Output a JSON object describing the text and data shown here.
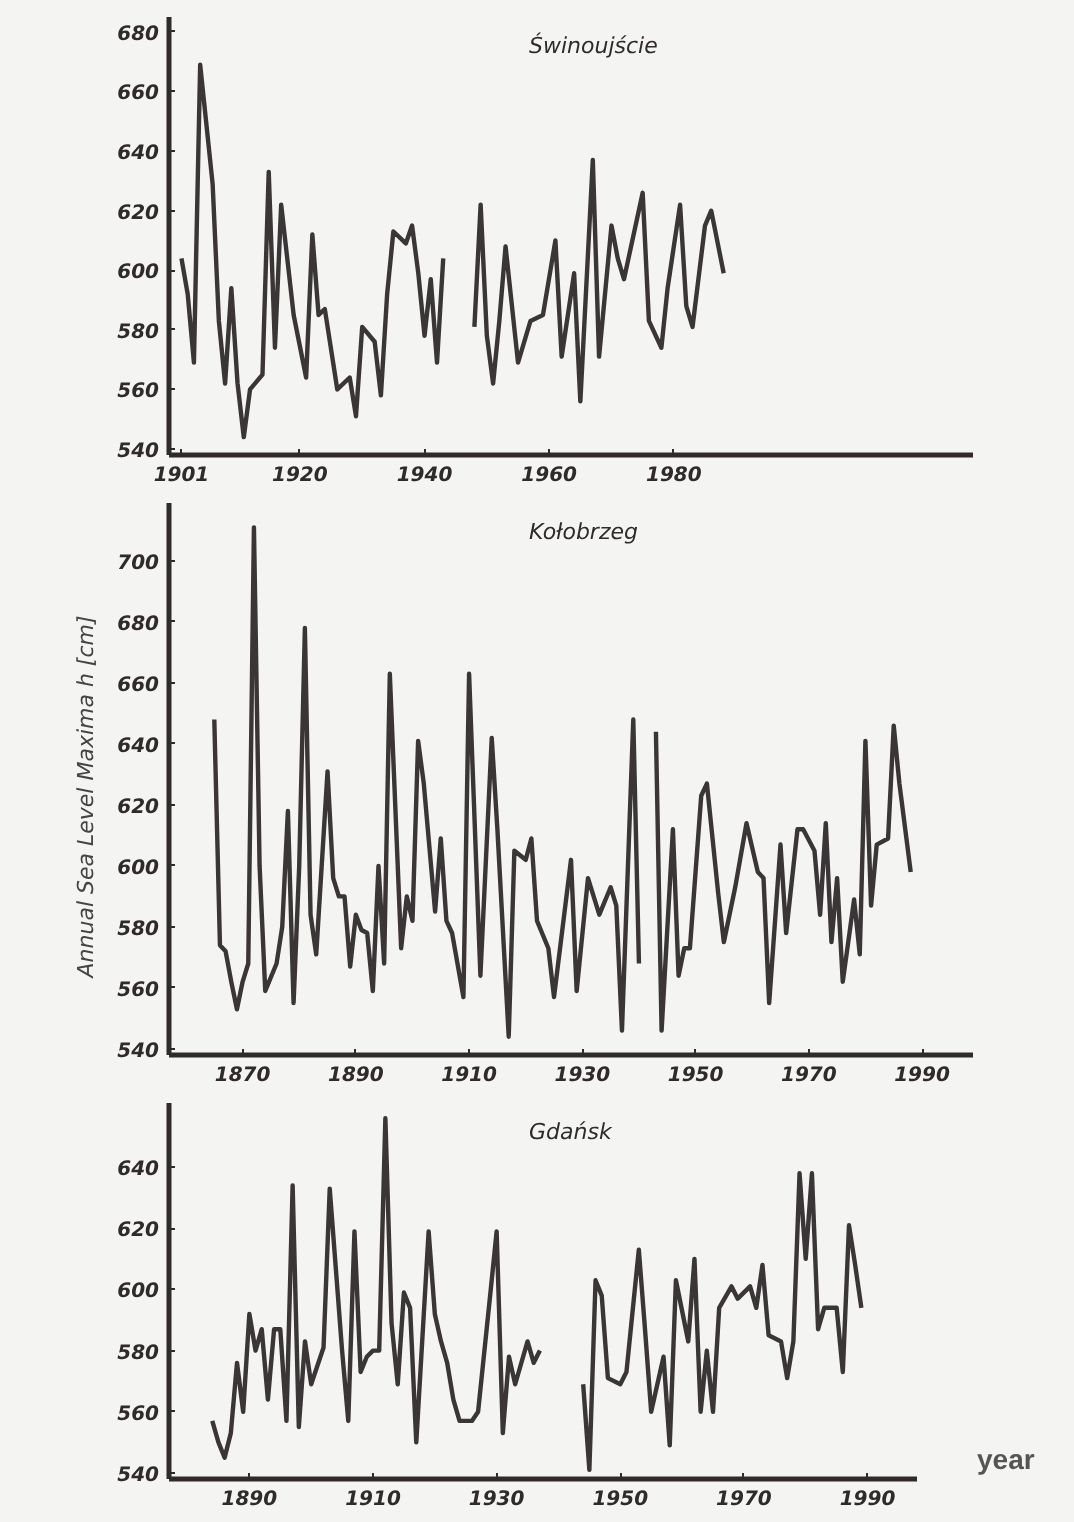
{
  "chart_data": [
    {
      "type": "line",
      "title": "Świnoujście",
      "xlim": [
        1899,
        2028
      ],
      "ylim": [
        538,
        685
      ],
      "xticks": [
        1901,
        1920,
        1940,
        1960,
        1980
      ],
      "yticks": [
        540,
        560,
        580,
        600,
        620,
        640,
        660,
        680
      ],
      "x": [
        1901,
        1902,
        1903,
        1904,
        1906,
        1907,
        1908,
        1909,
        1910,
        1911,
        1912,
        1914,
        1915,
        1916,
        1917,
        1919,
        1921,
        1922,
        1923,
        1924,
        1926,
        1928,
        1929,
        1930,
        1932,
        1933,
        1934,
        1935,
        1937,
        1938,
        1939,
        1940,
        1941,
        1942,
        1943,
        1945,
        1948,
        1949,
        1950,
        1951,
        1952,
        1953,
        1955,
        1957,
        1959,
        1961,
        1962,
        1964,
        1965,
        1967,
        1968,
        1970,
        1971,
        1972,
        1975,
        1976,
        1978,
        1979,
        1981,
        1982,
        1983,
        1985,
        1986,
        1988
      ],
      "series": [
        {
          "color": "#3a3536",
          "values": [
            604,
            592,
            569,
            669,
            629,
            583,
            562,
            594,
            562,
            544,
            560,
            565,
            633,
            574,
            622,
            585,
            564,
            612,
            585,
            587,
            560,
            564,
            551,
            581,
            576,
            558,
            592,
            613,
            609,
            615,
            599,
            578,
            597,
            569,
            604,
            null,
            581,
            622,
            578,
            562,
            583,
            608,
            569,
            583,
            585,
            610,
            571,
            599,
            556,
            637,
            571,
            615,
            604,
            597,
            626,
            583,
            574,
            594,
            622,
            588,
            581,
            615,
            620,
            599
          ]
        }
      ]
    },
    {
      "type": "line",
      "title": "Kołobrzeg",
      "ylabel": "Annual  Sea  Level  Maxima  h  [cm]",
      "xlim": [
        1857,
        1999
      ],
      "ylim": [
        538,
        719
      ],
      "xticks": [
        1870,
        1890,
        1910,
        1930,
        1950,
        1970,
        1990
      ],
      "yticks": [
        540,
        560,
        580,
        600,
        620,
        640,
        660,
        680,
        700
      ],
      "x": [
        1865,
        1866,
        1867,
        1868,
        1869,
        1870,
        1871,
        1872,
        1873,
        1874,
        1876,
        1877,
        1878,
        1879,
        1880,
        1881,
        1882,
        1883,
        1885,
        1886,
        1887,
        1888,
        1889,
        1890,
        1891,
        1892,
        1893,
        1894,
        1895,
        1896,
        1898,
        1899,
        1900,
        1901,
        1902,
        1904,
        1905,
        1906,
        1907,
        1909,
        1910,
        1912,
        1914,
        1915,
        1917,
        1918,
        1920,
        1921,
        1922,
        1924,
        1925,
        1928,
        1929,
        1931,
        1933,
        1935,
        1936,
        1937,
        1939,
        1940,
        1941,
        1943,
        1944,
        1946,
        1947,
        1948,
        1949,
        1951,
        1952,
        1954,
        1955,
        1957,
        1959,
        1961,
        1962,
        1963,
        1965,
        1966,
        1968,
        1969,
        1971,
        1972,
        1973,
        1974,
        1975,
        1976,
        1978,
        1979,
        1980,
        1981,
        1982,
        1984,
        1985,
        1986,
        1988
      ],
      "series": [
        {
          "color": "#3a3536",
          "values": [
            648,
            574,
            572,
            562,
            553,
            562,
            568,
            711,
            600,
            559,
            568,
            580,
            618,
            555,
            600,
            678,
            584,
            571,
            631,
            596,
            590,
            590,
            567,
            584,
            579,
            578,
            559,
            600,
            568,
            663,
            573,
            590,
            582,
            641,
            627,
            585,
            609,
            582,
            578,
            557,
            663,
            564,
            642,
            612,
            544,
            605,
            602,
            609,
            582,
            573,
            557,
            602,
            559,
            596,
            584,
            593,
            587,
            546,
            648,
            568,
            null,
            644,
            546,
            612,
            564,
            573,
            573,
            623,
            627,
            591,
            575,
            593,
            614,
            598,
            596,
            555,
            607,
            578,
            612,
            612,
            605,
            584,
            614,
            575,
            596,
            562,
            589,
            571,
            641,
            587,
            607,
            609,
            646,
            627,
            598
          ]
        }
      ]
    },
    {
      "type": "line",
      "title": "Gdańsk",
      "xlabel": "year",
      "xlim": [
        1877,
        1998
      ],
      "ylim": [
        538,
        661
      ],
      "xticks": [
        1890,
        1910,
        1930,
        1950,
        1970,
        1990
      ],
      "yticks": [
        540,
        560,
        580,
        600,
        620,
        640
      ],
      "x": [
        1884,
        1885,
        1886,
        1887,
        1888,
        1889,
        1890,
        1891,
        1892,
        1893,
        1894,
        1895,
        1896,
        1897,
        1898,
        1899,
        1900,
        1902,
        1903,
        1905,
        1906,
        1907,
        1908,
        1909,
        1910,
        1911,
        1912,
        1913,
        1914,
        1915,
        1916,
        1917,
        1919,
        1920,
        1921,
        1922,
        1923,
        1924,
        1926,
        1927,
        1929,
        1930,
        1931,
        1932,
        1933,
        1935,
        1936,
        1937,
        1940,
        1944,
        1945,
        1946,
        1947,
        1948,
        1950,
        1951,
        1953,
        1954,
        1955,
        1957,
        1958,
        1959,
        1961,
        1962,
        1963,
        1964,
        1965,
        1966,
        1968,
        1969,
        1971,
        1972,
        1973,
        1974,
        1976,
        1977,
        1978,
        1979,
        1980,
        1981,
        1982,
        1983,
        1985,
        1986,
        1987,
        1988,
        1989
      ],
      "series": [
        {
          "color": "#3a3536",
          "values": [
            557,
            550,
            545,
            553,
            576,
            560,
            592,
            580,
            587,
            564,
            587,
            587,
            557,
            634,
            555,
            583,
            569,
            581,
            633,
            580,
            557,
            619,
            573,
            578,
            580,
            580,
            656,
            589,
            569,
            599,
            594,
            550,
            619,
            592,
            583,
            576,
            564,
            557,
            557,
            560,
            599,
            619,
            553,
            578,
            569,
            583,
            576,
            580,
            null,
            569,
            541,
            603,
            598,
            571,
            569,
            573,
            613,
            587,
            560,
            578,
            549,
            603,
            583,
            610,
            560,
            580,
            560,
            594,
            601,
            597,
            601,
            594,
            608,
            585,
            583,
            571,
            583,
            638,
            610,
            638,
            587,
            594,
            594,
            573,
            621,
            608,
            594
          ]
        }
      ]
    }
  ]
}
